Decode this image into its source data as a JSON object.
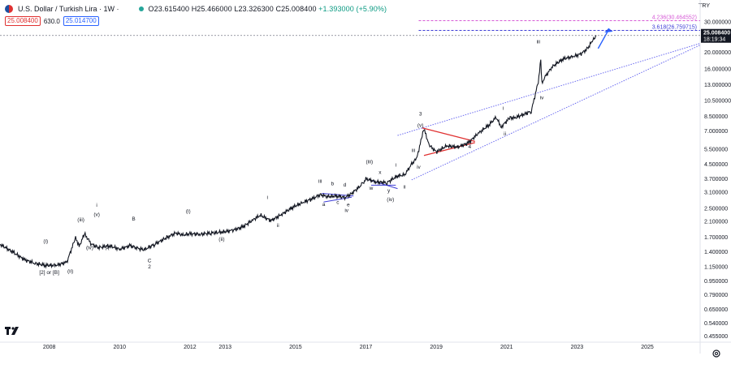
{
  "header": {
    "title": "U.S. Dollar / Turkish Lira · 1W ·",
    "ohlc": {
      "open": "O23.615400",
      "high": "H25.466000",
      "low": "L23.326300",
      "close": "C25.008400",
      "change": "+1.393000 (+5.90%)"
    },
    "sell_price": "25.008400",
    "spread": "630.0",
    "buy_price": "25.014700"
  },
  "currency_label": "TRY",
  "price_label": {
    "value": "25.008400",
    "countdown": "18:19:34"
  },
  "fib_levels": [
    {
      "label": "4.236(30.464552)",
      "value": 30.464552,
      "color": "#d65bd6"
    },
    {
      "label": "3.618(26.759715)",
      "value": 26.759715,
      "color": "#3d3dd6"
    }
  ],
  "chart_data": {
    "type": "line",
    "log_scale": true,
    "x_ticks": [
      "2008",
      "2010",
      "2012",
      "2013",
      "2015",
      "2017",
      "2019",
      "2021",
      "2023",
      "2025"
    ],
    "y_ticks": [
      30.0,
      25.0,
      20.0,
      16.0,
      13.0,
      10.5,
      8.5,
      7.0,
      5.5,
      4.5,
      3.7,
      3.1,
      2.5,
      2.1,
      1.7,
      1.4,
      1.15,
      0.95,
      0.79,
      0.65,
      0.54,
      0.455
    ],
    "x_range": [
      2006.6,
      2026.5
    ],
    "y_range": [
      0.42,
      36.0
    ],
    "grid": false,
    "series": [
      {
        "x": [
          2006.6,
          2007.0,
          2007.3,
          2007.6,
          2007.9,
          2008.2,
          2008.5,
          2008.75,
          2008.85,
          2009.0,
          2009.2,
          2009.4,
          2009.7,
          2010.0,
          2010.3,
          2010.5,
          2010.7,
          2011.0,
          2011.4,
          2011.6,
          2011.8,
          2012.0,
          2012.3,
          2012.6,
          2012.9,
          2013.2,
          2013.5,
          2013.8,
          2014.0,
          2014.3,
          2014.6,
          2014.9,
          2015.2,
          2015.5,
          2015.7,
          2015.9,
          2016.2,
          2016.4,
          2016.6,
          2016.9,
          2017.0,
          2017.3,
          2017.6,
          2017.9,
          2018.1,
          2018.3,
          2018.45,
          2018.6,
          2018.65,
          2018.8,
          2019.0,
          2019.3,
          2019.6,
          2019.9,
          2020.2,
          2020.5,
          2020.7,
          2020.85,
          2021.1,
          2021.2,
          2021.4,
          2021.7,
          2021.9,
          2021.97,
          2022.0,
          2022.1,
          2022.3,
          2022.6,
          2022.9,
          2023.1,
          2023.3,
          2023.45,
          2023.55
        ],
        "y": [
          1.55,
          1.38,
          1.26,
          1.2,
          1.17,
          1.17,
          1.22,
          1.7,
          1.5,
          1.78,
          1.55,
          1.48,
          1.52,
          1.45,
          1.52,
          1.47,
          1.44,
          1.55,
          1.72,
          1.8,
          1.75,
          1.78,
          1.77,
          1.8,
          1.82,
          1.86,
          1.95,
          2.15,
          2.28,
          2.12,
          2.3,
          2.52,
          2.7,
          2.85,
          3.0,
          2.92,
          2.95,
          2.88,
          3.05,
          3.45,
          3.7,
          3.55,
          3.52,
          3.85,
          3.9,
          4.5,
          4.9,
          6.6,
          7.2,
          5.8,
          5.3,
          5.75,
          5.65,
          5.95,
          6.8,
          7.6,
          8.4,
          7.4,
          8.4,
          8.3,
          8.6,
          9.1,
          13.5,
          18.0,
          13.2,
          14.5,
          16.5,
          18.3,
          18.9,
          19.5,
          21.0,
          23.5,
          25.01
        ]
      }
    ],
    "wave_labels": [
      {
        "text": "[2] or [B]",
        "x": 2008.0,
        "y": 1.04
      },
      {
        "text": "(i)",
        "x": 2007.9,
        "y": 1.58
      },
      {
        "text": "(ii)",
        "x": 2008.6,
        "y": 1.06
      },
      {
        "text": "(iii)",
        "x": 2008.9,
        "y": 2.1
      },
      {
        "text": "(iv)",
        "x": 2009.15,
        "y": 1.45
      },
      {
        "text": "(v)",
        "x": 2009.35,
        "y": 2.25
      },
      {
        "text": "i",
        "x": 2009.35,
        "y": 2.55
      },
      {
        "text": "A",
        "x": 2009.65,
        "y": 1.43
      },
      {
        "text": "B",
        "x": 2010.4,
        "y": 2.12
      },
      {
        "text": "C",
        "x": 2010.85,
        "y": 1.22
      },
      {
        "text": "2",
        "x": 2010.85,
        "y": 1.12
      },
      {
        "text": "(i)",
        "x": 2011.95,
        "y": 2.35
      },
      {
        "text": "(ii)",
        "x": 2012.9,
        "y": 1.62
      },
      {
        "text": "i",
        "x": 2014.2,
        "y": 2.82
      },
      {
        "text": "ii",
        "x": 2014.5,
        "y": 1.95
      },
      {
        "text": "iii",
        "x": 2015.7,
        "y": 3.5
      },
      {
        "text": "b",
        "x": 2016.05,
        "y": 3.4
      },
      {
        "text": "d",
        "x": 2016.4,
        "y": 3.35
      },
      {
        "text": "a",
        "x": 2015.8,
        "y": 2.58
      },
      {
        "text": "c",
        "x": 2016.2,
        "y": 2.65
      },
      {
        "text": "e",
        "x": 2016.5,
        "y": 2.56
      },
      {
        "text": "iv",
        "x": 2016.45,
        "y": 2.38
      },
      {
        "text": "(iii)",
        "x": 2017.1,
        "y": 4.55
      },
      {
        "text": "x",
        "x": 2017.4,
        "y": 3.95
      },
      {
        "text": "w",
        "x": 2017.15,
        "y": 3.2
      },
      {
        "text": "y",
        "x": 2017.65,
        "y": 3.1
      },
      {
        "text": "(iv)",
        "x": 2017.7,
        "y": 2.75
      },
      {
        "text": "i",
        "x": 2017.85,
        "y": 4.35
      },
      {
        "text": "ii",
        "x": 2018.1,
        "y": 3.25
      },
      {
        "text": "iii",
        "x": 2018.35,
        "y": 5.3
      },
      {
        "text": "iv",
        "x": 2018.5,
        "y": 4.25
      },
      {
        "text": "3",
        "x": 2018.55,
        "y": 8.6
      },
      {
        "text": "(v)",
        "x": 2018.55,
        "y": 7.4
      },
      {
        "text": "4",
        "x": 2019.95,
        "y": 5.55
      },
      {
        "text": "i",
        "x": 2020.9,
        "y": 9.3
      },
      {
        "text": "ii",
        "x": 2020.95,
        "y": 6.6
      },
      {
        "text": "iii",
        "x": 2021.9,
        "y": 22.5
      },
      {
        "text": "iv",
        "x": 2022.0,
        "y": 10.7
      }
    ]
  }
}
